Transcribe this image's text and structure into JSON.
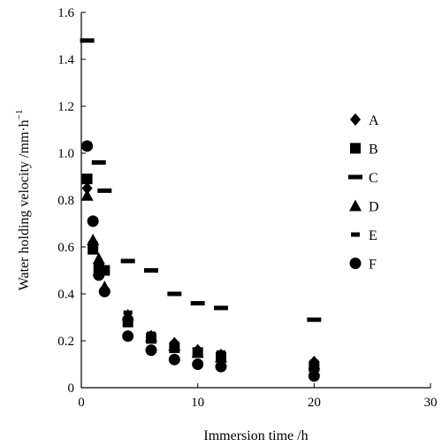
{
  "chart_data": {
    "type": "scatter",
    "xlabel": "Immersion time /h",
    "ylabel": "Water holding velocity /mm·h",
    "ylabel_sup": "−1",
    "xlim": [
      0,
      30
    ],
    "ylim": [
      0,
      1.6
    ],
    "xticks": [
      0,
      10,
      20,
      30
    ],
    "yticks": [
      0,
      0.2,
      0.4,
      0.6,
      0.8,
      1.0,
      1.2,
      1.4,
      1.6
    ],
    "ytick_labels": [
      "0",
      "0.2",
      "0.4",
      "0.6",
      "0.8",
      "1.0",
      "1.2",
      "1.4",
      "1.6"
    ],
    "grid": false,
    "legend_position": "right",
    "series": [
      {
        "name": "A",
        "marker": "diamond",
        "color": "#000000",
        "x": [
          0.5,
          1,
          1.5,
          2,
          4,
          6,
          8,
          10,
          12,
          20
        ],
        "y": [
          0.85,
          0.62,
          0.53,
          0.42,
          0.3,
          0.22,
          0.19,
          0.16,
          0.14,
          0.11
        ]
      },
      {
        "name": "B",
        "marker": "square",
        "color": "#000000",
        "x": [
          0.5,
          1,
          1.5,
          2,
          4,
          6,
          8,
          10,
          12,
          20
        ],
        "y": [
          0.89,
          0.59,
          0.51,
          0.5,
          0.28,
          0.21,
          0.17,
          0.15,
          0.13,
          0.09
        ]
      },
      {
        "name": "C",
        "marker": "dash",
        "color": "#000000",
        "x": [
          0.5,
          1.5,
          2,
          4,
          6,
          8,
          10,
          12,
          20
        ],
        "y": [
          1.48,
          0.96,
          0.84,
          0.54,
          0.5,
          0.4,
          0.36,
          0.34,
          0.29
        ]
      },
      {
        "name": "D",
        "marker": "triangle",
        "color": "#000000",
        "x": [
          0.5,
          1,
          1.5,
          2,
          4,
          6,
          8,
          10,
          12,
          20
        ],
        "y": [
          0.82,
          0.63,
          0.55,
          0.43,
          0.31,
          0.22,
          0.18,
          0.15,
          0.13,
          0.1
        ]
      },
      {
        "name": "E",
        "marker": "short-dash",
        "color": "#000000",
        "x": [
          0.5,
          1,
          1.5,
          2,
          4,
          6,
          8,
          10,
          12,
          20
        ],
        "y": [
          1.04,
          0.58,
          0.53,
          0.5,
          0.32,
          0.23,
          0.19,
          0.15,
          0.15,
          0.11
        ]
      },
      {
        "name": "F",
        "marker": "circle",
        "color": "#000000",
        "x": [
          0.5,
          1,
          1.5,
          2,
          4,
          6,
          8,
          10,
          12,
          20
        ],
        "y": [
          1.03,
          0.71,
          0.48,
          0.41,
          0.22,
          0.16,
          0.12,
          0.1,
          0.09,
          0.05
        ]
      }
    ]
  }
}
